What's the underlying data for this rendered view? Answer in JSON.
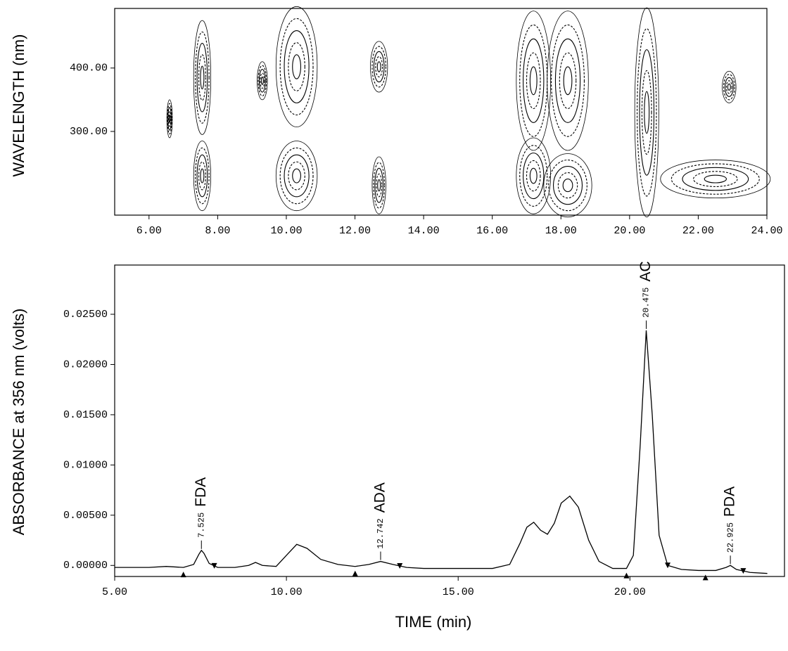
{
  "chart_data": [
    {
      "type": "contour",
      "y_label": "WAVELENGTH (nm)",
      "xlim": [
        5,
        24
      ],
      "ylim": [
        168,
        494
      ],
      "xticks": [
        {
          "value": 6,
          "label": "6.00"
        },
        {
          "value": 8,
          "label": "8.00"
        },
        {
          "value": 10,
          "label": "10.00"
        },
        {
          "value": 12,
          "label": "12.00"
        },
        {
          "value": 14,
          "label": "14.00"
        },
        {
          "value": 16,
          "label": "16.00"
        },
        {
          "value": 18,
          "label": "18.00"
        },
        {
          "value": 20,
          "label": "20.00"
        },
        {
          "value": 22,
          "label": "22.00"
        },
        {
          "value": 24,
          "label": "24.00"
        }
      ],
      "yticks": [
        {
          "value": 300,
          "label": "300.00"
        },
        {
          "value": 400,
          "label": "400.00"
        }
      ],
      "color": "#000000",
      "spots": [
        {
          "x": 6.6,
          "y": 320,
          "dx": 0.08,
          "dy": 30
        },
        {
          "x": 7.55,
          "y": 385,
          "dx": 0.25,
          "dy": 90
        },
        {
          "x": 7.55,
          "y": 230,
          "dx": 0.25,
          "dy": 55
        },
        {
          "x": 9.3,
          "y": 380,
          "dx": 0.15,
          "dy": 30
        },
        {
          "x": 10.3,
          "y": 402,
          "dx": 0.6,
          "dy": 95
        },
        {
          "x": 10.3,
          "y": 230,
          "dx": 0.6,
          "dy": 55
        },
        {
          "x": 12.7,
          "y": 402,
          "dx": 0.25,
          "dy": 40
        },
        {
          "x": 12.7,
          "y": 215,
          "dx": 0.2,
          "dy": 45
        },
        {
          "x": 17.2,
          "y": 380,
          "dx": 0.5,
          "dy": 110
        },
        {
          "x": 17.2,
          "y": 230,
          "dx": 0.5,
          "dy": 60
        },
        {
          "x": 18.2,
          "y": 380,
          "dx": 0.6,
          "dy": 110
        },
        {
          "x": 18.2,
          "y": 215,
          "dx": 0.7,
          "dy": 50
        },
        {
          "x": 20.5,
          "y": 330,
          "dx": 0.35,
          "dy": 165
        },
        {
          "x": 22.5,
          "y": 225,
          "dx": 1.6,
          "dy": 30
        },
        {
          "x": 22.9,
          "y": 370,
          "dx": 0.2,
          "dy": 25
        }
      ]
    },
    {
      "type": "line",
      "x_label": "TIME (min)",
      "y_label": "ABSORBANCE at 356 nm (volts)",
      "xlim": [
        5,
        24.5
      ],
      "ylim": [
        -0.0011,
        0.0299
      ],
      "xticks": [
        {
          "value": 5,
          "label": "5.00"
        },
        {
          "value": 10,
          "label": "10.00"
        },
        {
          "value": 15,
          "label": "15.00"
        },
        {
          "value": 20,
          "label": "20.00"
        }
      ],
      "yticks": [
        {
          "value": 0,
          "label": "0.00000"
        },
        {
          "value": 0.005,
          "label": "0.00500"
        },
        {
          "value": 0.01,
          "label": "0.01000"
        },
        {
          "value": 0.015,
          "label": "0.01500"
        },
        {
          "value": 0.02,
          "label": "0.02000"
        },
        {
          "value": 0.025,
          "label": "0.02500"
        }
      ],
      "color": "#000000",
      "x": [
        5.0,
        5.5,
        6.0,
        6.5,
        7.0,
        7.3,
        7.45,
        7.525,
        7.6,
        7.75,
        8.0,
        8.5,
        8.9,
        9.1,
        9.3,
        9.7,
        10.0,
        10.3,
        10.6,
        11.0,
        11.5,
        12.0,
        12.4,
        12.742,
        13.1,
        13.5,
        14.0,
        15.0,
        16.0,
        16.5,
        16.8,
        17.0,
        17.2,
        17.4,
        17.6,
        17.8,
        18.0,
        18.25,
        18.5,
        18.8,
        19.1,
        19.5,
        19.9,
        20.1,
        20.3,
        20.475,
        20.65,
        20.85,
        21.1,
        21.5,
        22.0,
        22.5,
        22.8,
        22.925,
        23.1,
        23.5,
        24.0
      ],
      "values": [
        -0.0002,
        -0.0002,
        -0.0002,
        -0.0001,
        -0.0002,
        0.0001,
        0.0011,
        0.0015,
        0.0012,
        0.0002,
        -0.0002,
        -0.0002,
        0.0,
        0.0003,
        0.0,
        -0.0001,
        0.001,
        0.0021,
        0.0017,
        0.0006,
        0.0001,
        -0.0001,
        0.0001,
        0.0004,
        0.0001,
        -0.0002,
        -0.0003,
        -0.0003,
        -0.0003,
        0.0001,
        0.0022,
        0.0038,
        0.0043,
        0.0035,
        0.0031,
        0.0042,
        0.0062,
        0.0069,
        0.0058,
        0.0025,
        0.0004,
        -0.0003,
        -0.0003,
        0.001,
        0.012,
        0.0234,
        0.015,
        0.003,
        0.0,
        -0.0004,
        -0.0005,
        -0.0005,
        -0.0002,
        0.0,
        -0.0004,
        -0.0007,
        -0.0008
      ],
      "annotations": [
        {
          "text": "FDA",
          "x": 7.525
        },
        {
          "text": "ADA",
          "x": 12.742
        },
        {
          "text": "AC",
          "x": 20.475
        },
        {
          "text": "PDA",
          "x": 22.925
        }
      ],
      "baseline_start": [
        7.0,
        12.0,
        19.9,
        22.2
      ],
      "baseline_end": [
        7.9,
        13.3,
        21.1,
        23.3
      ]
    }
  ]
}
